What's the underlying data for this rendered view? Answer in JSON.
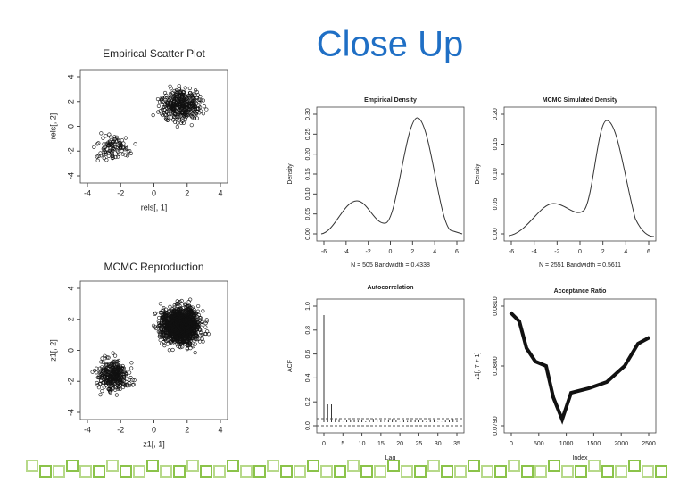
{
  "header": {
    "title": "Close Up"
  },
  "panels": [
    {
      "title": "Empirical Scatter Plot",
      "xlabel": "rels[, 1]",
      "ylabel": "rels[, 2]",
      "xticks": [
        "-4",
        "-2",
        "0",
        "2",
        "4"
      ],
      "yticks": [
        "-4",
        "-2",
        "0",
        "2",
        "4"
      ]
    },
    {
      "title": "MCMC Reproduction",
      "xlabel": "z1[, 1]",
      "ylabel": "z1[, 2]",
      "xticks": [
        "-4",
        "-2",
        "0",
        "2",
        "4"
      ],
      "yticks": [
        "-4",
        "-2",
        "0",
        "2",
        "4"
      ]
    },
    {
      "title": "Empirical Density",
      "ylabel": "Density",
      "xticks": [
        "-6",
        "-4",
        "-2",
        "0",
        "2",
        "4",
        "6"
      ],
      "yticks": [
        "0.00",
        "0.05",
        "0.10",
        "0.15",
        "0.20",
        "0.25",
        "0.30"
      ],
      "note": "N = 505   Bandwidth = 0.4338"
    },
    {
      "title": "MCMC Simulated Density",
      "ylabel": "Density",
      "xticks": [
        "-6",
        "-4",
        "-2",
        "0",
        "2",
        "4",
        "6"
      ],
      "yticks": [
        "0.00",
        "0.05",
        "0.10",
        "0.15",
        "0.20"
      ],
      "note": "N = 2551   Bandwidth = 0.5611"
    },
    {
      "title": "Autocorrelation",
      "xlabel": "Lag",
      "ylabel": "ACF",
      "xticks": [
        "0",
        "5",
        "10",
        "15",
        "20",
        "25",
        "30",
        "35"
      ],
      "yticks": [
        "0.0",
        "0.2",
        "0.4",
        "0.6",
        "0.8",
        "1.0"
      ]
    },
    {
      "title": "Acceptance Ratio",
      "xlabel": "Index",
      "ylabel": "z1[, 7 + 1]",
      "xticks": [
        "0",
        "500",
        "1000",
        "1500",
        "2000",
        "2500"
      ],
      "yticks": [
        "0.0790",
        "0.0800",
        "0.0810"
      ]
    }
  ]
}
